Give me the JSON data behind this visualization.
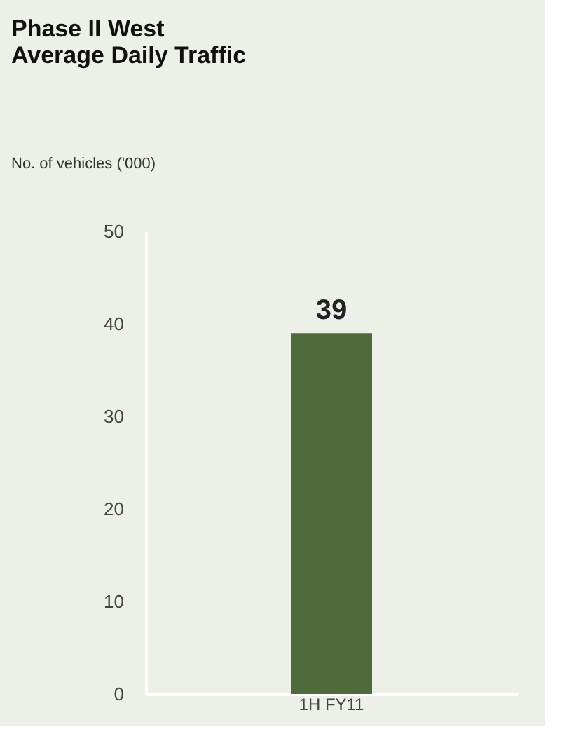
{
  "chart_data": {
    "type": "bar",
    "title": "Phase II West\nAverage Daily Traffic",
    "ylabel": "No. of vehicles ('000)",
    "categories": [
      "1H FY11"
    ],
    "values": [
      39
    ],
    "color": "#4f6b3c",
    "ylim": [
      0,
      50
    ],
    "yticks": [
      0,
      10,
      20,
      30,
      40,
      50
    ],
    "grid": false,
    "data_labels": true
  }
}
